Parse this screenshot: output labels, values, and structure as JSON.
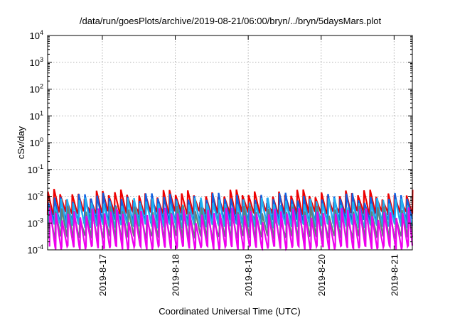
{
  "chart_data": {
    "type": "line",
    "title": "/data/run/goesPlots/archive/2019-08-21/06:00/bryn/../bryn/5daysMars.plot",
    "xlabel": "Coordinated Universal Time (UTC)",
    "ylabel": "cSv/day",
    "yscale": "log",
    "ylim": [
      0.0001,
      10000
    ],
    "xlim": [
      "2019-08-16 06:00",
      "2019-08-21 06:00"
    ],
    "grid": true,
    "y_ticks": [
      {
        "exp": "-4",
        "value": 0.0001
      },
      {
        "exp": "-3",
        "value": 0.001
      },
      {
        "exp": "-2",
        "value": 0.01
      },
      {
        "exp": "-1",
        "value": 0.1
      },
      {
        "exp": "0",
        "value": 1
      },
      {
        "exp": "1",
        "value": 10
      },
      {
        "exp": "2",
        "value": 100
      },
      {
        "exp": "3",
        "value": 1000
      },
      {
        "exp": "4",
        "value": 10000
      }
    ],
    "y_tick_base": "10",
    "x_ticks": [
      {
        "label": "2019-8-17",
        "time": "2019-08-17 00:00"
      },
      {
        "label": "2019-8-18",
        "time": "2019-08-18 00:00"
      },
      {
        "label": "2019-8-19",
        "time": "2019-08-19 00:00"
      },
      {
        "label": "2019-8-20",
        "time": "2019-08-20 00:00"
      },
      {
        "label": "2019-8-21",
        "time": "2019-08-21 00:00"
      }
    ],
    "sawtooth_period_hours": 2,
    "series": [
      {
        "color": "#ee0000",
        "peak": 0.012,
        "trough": 0.0025
      },
      {
        "color": "#1060e0",
        "peak": 0.009,
        "trough": 0.0012
      },
      {
        "color": "#20b0f0",
        "peak": 0.006,
        "trough": 0.0008
      },
      {
        "color": "#608080",
        "peak": 0.003,
        "trough": 0.0003
      },
      {
        "color": "#ee00ee",
        "peak": 0.0025,
        "trough": 0.00012
      }
    ]
  }
}
